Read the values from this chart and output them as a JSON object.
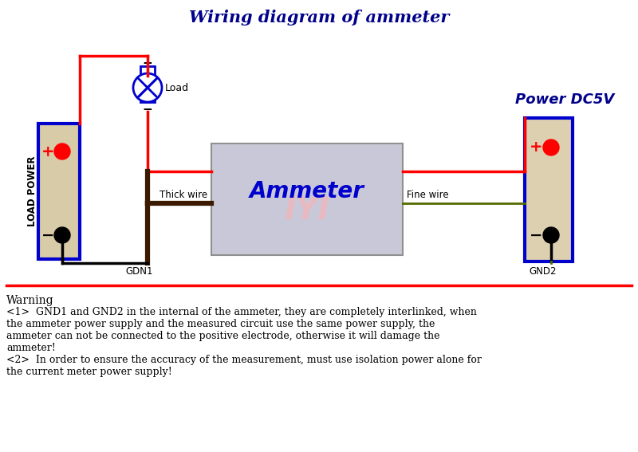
{
  "title": "Wiring diagram of ammeter",
  "title_color": "#00008B",
  "title_fontsize": 15,
  "bg_color": "#FFFFFF",
  "warning_text": "Warning",
  "warning_line1": "<1>  GND1 and GND2 in the internal of the ammeter, they are completely interlinked, when",
  "warning_line2": "the ammeter power supply and the measured circuit use the same power supply, the",
  "warning_line3": "ammeter can not be connected to the positive electrode, otherwise it will damage the",
  "warning_line4": "ammeter!",
  "warning_line5": "<2>  In order to ensure the accuracy of the measurement, must use isolation power alone for",
  "warning_line6": "the current meter power supply!",
  "load_power_text": "LOAD POWER",
  "power_dc5v_text": "Power DC5V",
  "ammeter_text": "Ammeter",
  "thick_wire_text": "Thick wire",
  "fine_wire_text": "Fine wire",
  "gnd1_text": "GDN1",
  "gnd2_text": "GND2",
  "load_text": "Load",
  "red_color": "#FF0000",
  "blue_color": "#0000CD",
  "dark_blue_color": "#00008B",
  "dark_brown_color": "#3B1A00",
  "dark_olive_color": "#556B00",
  "light_gray": "#D0D0D0",
  "ammeter_gray": "#C8C8D8",
  "battery_beige": "#D8CBA8",
  "battery_beige_r": "#DDD0B0",
  "watermark_color": "#FFB0B0",
  "separator_color": "#FF0000"
}
